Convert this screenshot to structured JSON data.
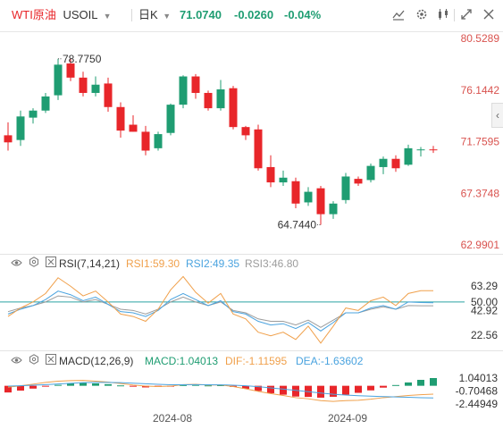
{
  "header": {
    "title": "WTI原油",
    "symbol": "USOIL",
    "period": "日K",
    "price": "71.0740",
    "change": "-0.0260",
    "change_pct": "-0.04%",
    "up_color": "#1f9d72",
    "down_color": "#e8262a",
    "icons": [
      "draw-line-icon",
      "settings-icon",
      "indicators-icon",
      "fullscreen-icon",
      "close-icon"
    ]
  },
  "rsi_panel": {
    "label": "RSI(7,14,21)",
    "rsi1": "RSI1:59.30",
    "rsi2": "RSI2:49.35",
    "rsi3": "RSI3:46.80",
    "colors": {
      "rsi1": "#f0a04b",
      "rsi2": "#4aa3df",
      "rsi3": "#9c9c9c"
    }
  },
  "macd_panel": {
    "label": "MACD(12,26,9)",
    "macd": "MACD:1.04013",
    "dif": "DIF:-1.11595",
    "dea": "DEA:-1.63602",
    "colors": {
      "dif": "#f0a04b",
      "dea": "#4aa3df"
    }
  },
  "chart_data": [
    {
      "type": "candlestick",
      "title": "WTI原油 USOIL 日K",
      "ylim": [
        62.9901,
        80.5289
      ],
      "y_ticks": [
        "80.5289",
        "76.1442",
        "71.7595",
        "67.3748",
        "62.9901"
      ],
      "x_ticks": [
        "2024-08",
        "2024-09"
      ],
      "annotations": {
        "high": "78.7750",
        "low": "64.7440"
      },
      "last_price": 71.074,
      "candles": [
        {
          "o": 72.3,
          "h": 73.4,
          "l": 71.0,
          "c": 71.7
        },
        {
          "o": 71.9,
          "h": 74.4,
          "l": 71.4,
          "c": 73.9
        },
        {
          "o": 73.8,
          "h": 74.6,
          "l": 73.3,
          "c": 74.4
        },
        {
          "o": 74.4,
          "h": 75.9,
          "l": 74.2,
          "c": 75.6
        },
        {
          "o": 75.7,
          "h": 78.8,
          "l": 75.3,
          "c": 78.3
        },
        {
          "o": 78.4,
          "h": 78.8,
          "l": 76.9,
          "c": 77.2
        },
        {
          "o": 77.2,
          "h": 77.7,
          "l": 75.6,
          "c": 75.9
        },
        {
          "o": 75.9,
          "h": 77.3,
          "l": 75.6,
          "c": 76.6
        },
        {
          "o": 76.7,
          "h": 77.2,
          "l": 74.3,
          "c": 74.7
        },
        {
          "o": 74.7,
          "h": 75.1,
          "l": 72.1,
          "c": 72.7
        },
        {
          "o": 73.2,
          "h": 74.0,
          "l": 72.6,
          "c": 72.6
        },
        {
          "o": 72.6,
          "h": 73.1,
          "l": 70.6,
          "c": 71.0
        },
        {
          "o": 71.2,
          "h": 72.6,
          "l": 71.0,
          "c": 72.4
        },
        {
          "o": 72.5,
          "h": 75.0,
          "l": 72.3,
          "c": 74.9
        },
        {
          "o": 74.9,
          "h": 77.4,
          "l": 74.6,
          "c": 77.3
        },
        {
          "o": 77.3,
          "h": 77.5,
          "l": 75.4,
          "c": 75.9
        },
        {
          "o": 75.9,
          "h": 76.1,
          "l": 74.4,
          "c": 74.6
        },
        {
          "o": 74.6,
          "h": 77.0,
          "l": 74.4,
          "c": 76.2
        },
        {
          "o": 76.3,
          "h": 76.5,
          "l": 72.8,
          "c": 73.0
        },
        {
          "o": 73.0,
          "h": 73.1,
          "l": 71.9,
          "c": 72.3
        },
        {
          "o": 72.8,
          "h": 73.2,
          "l": 69.3,
          "c": 69.5
        },
        {
          "o": 69.6,
          "h": 70.6,
          "l": 67.9,
          "c": 68.3
        },
        {
          "o": 68.3,
          "h": 69.3,
          "l": 68.0,
          "c": 68.7
        },
        {
          "o": 68.4,
          "h": 68.7,
          "l": 66.1,
          "c": 66.5
        },
        {
          "o": 66.6,
          "h": 67.9,
          "l": 66.3,
          "c": 67.5
        },
        {
          "o": 67.8,
          "h": 68.0,
          "l": 64.7,
          "c": 65.6
        },
        {
          "o": 65.6,
          "h": 66.7,
          "l": 65.2,
          "c": 66.5
        },
        {
          "o": 66.8,
          "h": 69.1,
          "l": 66.5,
          "c": 68.8
        },
        {
          "o": 68.6,
          "h": 68.8,
          "l": 68.0,
          "c": 68.2
        },
        {
          "o": 68.5,
          "h": 69.9,
          "l": 68.3,
          "c": 69.7
        },
        {
          "o": 69.6,
          "h": 70.5,
          "l": 69.0,
          "c": 70.3
        },
        {
          "o": 70.3,
          "h": 70.6,
          "l": 69.2,
          "c": 69.5
        },
        {
          "o": 69.8,
          "h": 71.5,
          "l": 69.7,
          "c": 71.2
        },
        {
          "o": 71.1,
          "h": 71.3,
          "l": 70.5,
          "c": 71.1
        },
        {
          "o": 71.1,
          "h": 71.4,
          "l": 70.8,
          "c": 71.07
        }
      ]
    },
    {
      "type": "line",
      "title": "RSI(7,14,21)",
      "ylim": [
        10,
        75
      ],
      "y_ticks": [
        "63.29",
        "50.00",
        "42.92",
        "22.56"
      ],
      "reference_line": 50,
      "series": [
        {
          "name": "RSI1",
          "values": [
            38,
            45,
            50,
            57,
            70,
            63,
            55,
            59,
            50,
            40,
            38,
            34,
            44,
            60,
            71,
            58,
            49,
            57,
            40,
            36,
            25,
            22,
            25,
            19,
            30,
            16,
            30,
            45,
            43,
            51,
            54,
            47,
            57,
            59.3,
            59.3
          ]
        },
        {
          "name": "RSI2",
          "values": [
            40,
            44,
            47,
            52,
            59,
            56,
            51,
            54,
            48,
            42,
            41,
            38,
            43,
            52,
            57,
            52,
            47,
            51,
            42,
            40,
            34,
            31,
            32,
            28,
            33,
            26,
            33,
            41,
            41,
            45,
            47,
            44,
            50,
            49.5,
            49.35
          ]
        },
        {
          "name": "RSI3",
          "values": [
            42,
            45,
            47,
            50,
            55,
            54,
            50,
            52,
            48,
            44,
            43,
            40,
            44,
            50,
            54,
            50,
            47,
            50,
            43,
            41,
            36,
            34,
            34,
            31,
            35,
            29,
            35,
            41,
            41,
            44,
            46,
            44,
            47,
            46.8,
            46.8
          ]
        }
      ]
    },
    {
      "type": "bar",
      "title": "MACD(12,26,9)",
      "ylim": [
        -2.44949,
        1.04013
      ],
      "y_ticks": [
        "1.04013",
        "-0.70468",
        "-2.44949"
      ],
      "macd": [
        -0.9,
        -0.65,
        -0.38,
        -0.12,
        0.12,
        0.35,
        0.4,
        0.32,
        0.22,
        0.05,
        -0.1,
        -0.22,
        -0.15,
        -0.05,
        0.1,
        0.12,
        0.05,
        0.08,
        -0.15,
        -0.4,
        -0.7,
        -1.0,
        -1.2,
        -1.45,
        -1.5,
        -1.6,
        -1.48,
        -1.2,
        -0.95,
        -0.62,
        -0.25,
        0.1,
        0.45,
        0.8,
        1.04
      ],
      "series": [
        {
          "name": "DIF",
          "values": [
            -0.2,
            0.0,
            0.22,
            0.45,
            0.62,
            0.7,
            0.72,
            0.62,
            0.5,
            0.3,
            0.1,
            -0.05,
            -0.1,
            -0.05,
            0.15,
            0.2,
            0.1,
            0.12,
            -0.1,
            -0.4,
            -0.75,
            -1.05,
            -1.3,
            -1.6,
            -1.75,
            -2.0,
            -2.1,
            -2.0,
            -1.95,
            -1.8,
            -1.6,
            -1.45,
            -1.3,
            -1.2,
            -1.12
          ]
        },
        {
          "name": "DEA",
          "values": [
            -0.05,
            0.0,
            0.08,
            0.15,
            0.25,
            0.34,
            0.42,
            0.46,
            0.46,
            0.42,
            0.35,
            0.27,
            0.2,
            0.14,
            0.14,
            0.15,
            0.14,
            0.13,
            0.08,
            0.0,
            -0.12,
            -0.28,
            -0.45,
            -0.62,
            -0.8,
            -0.98,
            -1.14,
            -1.25,
            -1.33,
            -1.4,
            -1.45,
            -1.5,
            -1.55,
            -1.6,
            -1.64
          ]
        }
      ]
    }
  ]
}
